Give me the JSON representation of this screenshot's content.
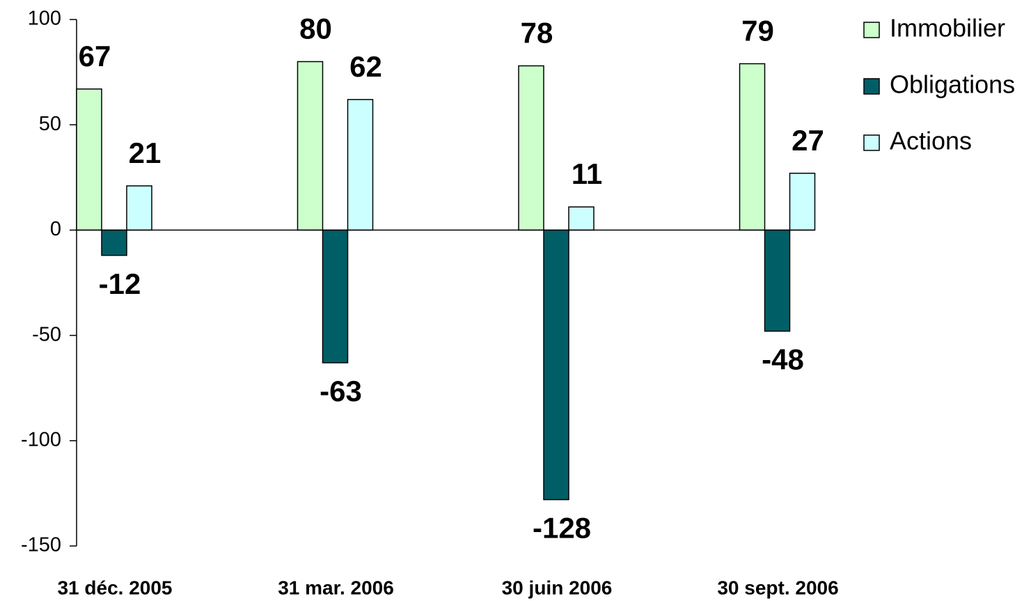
{
  "chart_data": {
    "type": "bar",
    "categories": [
      "31 déc. 2005",
      "31 mar. 2006",
      "30 juin 2006",
      "30 sept. 2006"
    ],
    "series": [
      {
        "name": "Immobilier",
        "color": "#ccffcc",
        "values": [
          67,
          80,
          78,
          79
        ]
      },
      {
        "name": "Obligations",
        "color": "#005f66",
        "values": [
          -12,
          -63,
          -128,
          -48
        ]
      },
      {
        "name": "Actions",
        "color": "#ccffff",
        "values": [
          21,
          62,
          11,
          27
        ]
      }
    ],
    "ylim": [
      -150,
      100
    ],
    "yticks": [
      -150,
      -100,
      -50,
      0,
      50,
      100
    ],
    "legend": "right",
    "grid": false
  }
}
